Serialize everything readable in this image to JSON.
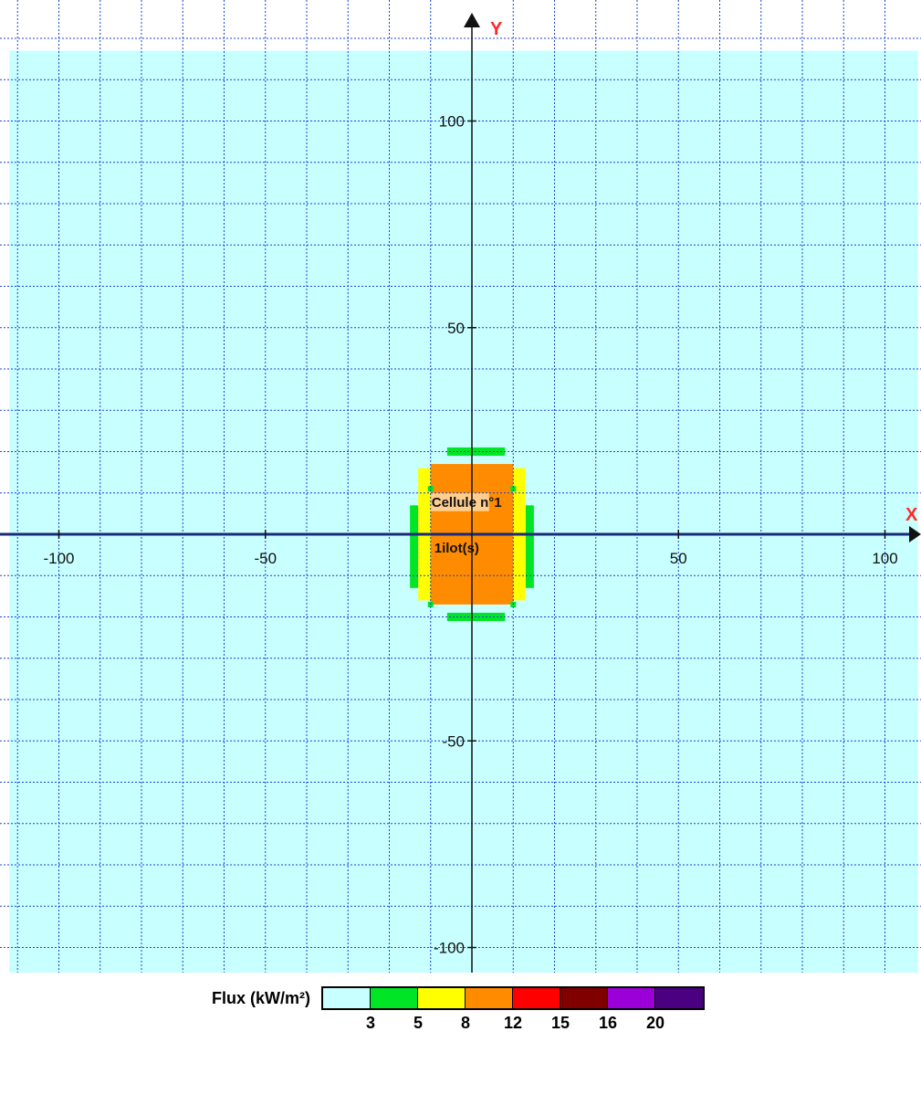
{
  "axes": {
    "x_letter": "X",
    "y_letter": "Y",
    "x_ticks": [
      {
        "value": -100,
        "label": "-100"
      },
      {
        "value": -50,
        "label": "-50"
      },
      {
        "value": 50,
        "label": "50"
      },
      {
        "value": 100,
        "label": "100"
      }
    ],
    "y_ticks": [
      {
        "value": 100,
        "label": "100"
      },
      {
        "value": 50,
        "label": "50"
      },
      {
        "value": -50,
        "label": "-50"
      },
      {
        "value": -100,
        "label": "-100"
      }
    ],
    "x_range": [
      -110,
      108
    ],
    "y_range": [
      -125,
      125
    ],
    "grid_step": 10,
    "axis_letter_color": "#ff2a2a",
    "grid_color": "#1a44d6"
  },
  "zones": [
    {
      "level": "< 3",
      "color": "#c8ffff",
      "rects": [
        [
          -112,
          -121,
          220,
          238
        ]
      ]
    },
    {
      "level": "3",
      "color": "#00e626",
      "rects": [
        [
          -6,
          -21,
          14,
          2
        ],
        [
          -6,
          19,
          14,
          2
        ],
        [
          -15,
          -13,
          2,
          20
        ],
        [
          13,
          -13,
          2,
          20
        ]
      ]
    },
    {
      "level": "5",
      "color": "#ffff00",
      "rects": [
        [
          -13,
          -16,
          26,
          32
        ]
      ]
    },
    {
      "level": "8",
      "color": "#ff8c00",
      "rects": [
        [
          -10,
          -17,
          20,
          34
        ]
      ]
    }
  ],
  "cell_labels": {
    "cell_name": "Cellule n°1",
    "ilot": "1ilot(s)"
  },
  "legend": {
    "title": "Flux (kW/m²)",
    "colors": [
      "#c8ffff",
      "#00e626",
      "#ffff00",
      "#ff8c00",
      "#ff0000",
      "#800000",
      "#9b00d9",
      "#4b0082"
    ],
    "thresholds": [
      "3",
      "5",
      "8",
      "12",
      "15",
      "16",
      "20"
    ]
  }
}
